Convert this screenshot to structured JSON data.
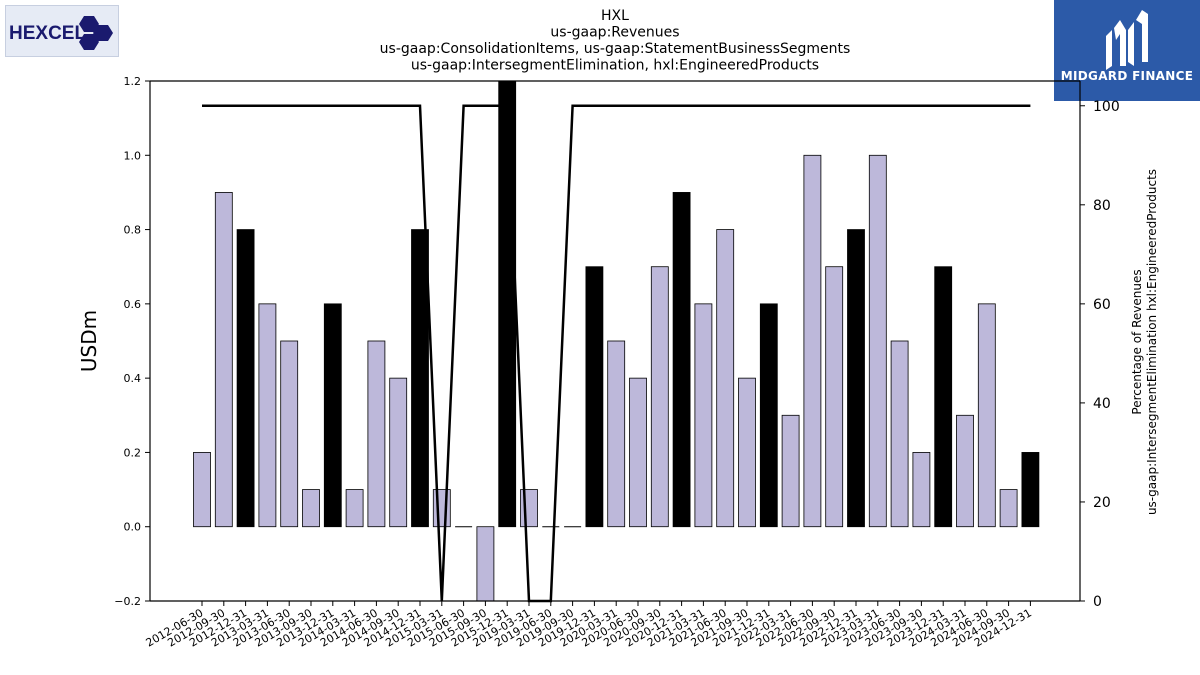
{
  "brand": {
    "left_logo_text": "HEXCEL",
    "right_logo_text": "MIDGARD FINANCE",
    "colors": {
      "light_bar": "#bdb8da",
      "dark_bar": "#000000",
      "line": "#000000",
      "logo_navy": "#1a1a6e",
      "logo_blue": "#2c5aa8"
    }
  },
  "chart_data": {
    "type": "bar",
    "title_lines": [
      "HXL",
      "us-gaap:Revenues",
      "us-gaap:ConsolidationItems, us-gaap:StatementBusinessSegments",
      "us-gaap:IntersegmentElimination, hxl:EngineeredProducts"
    ],
    "ylabel": "USDm",
    "y2label_lines": [
      "Percentage of Revenues",
      "us-gaap:IntersegmentElimination hxl:EngineeredProducts"
    ],
    "ylim": [
      -0.2,
      1.2
    ],
    "y2lim": [
      0,
      105
    ],
    "yticks": [
      -0.2,
      0.0,
      0.2,
      0.4,
      0.6,
      0.8,
      1.0,
      1.2
    ],
    "ytick_labels": [
      "−0.2",
      "0.0",
      "0.2",
      "0.4",
      "0.6",
      "0.8",
      "1.0",
      "1.2"
    ],
    "y2ticks": [
      0,
      20,
      40,
      60,
      80,
      100
    ],
    "y2tick_labels": [
      "0",
      "20",
      "40",
      "60",
      "80",
      "100"
    ],
    "categories": [
      "2012-06-30",
      "2012-09-30",
      "2012-12-31",
      "2013-03-31",
      "2013-06-30",
      "2013-09-30",
      "2013-12-31",
      "2014-03-31",
      "2014-06-30",
      "2014-09-30",
      "2014-12-31",
      "2015-03-31",
      "2015-06-30",
      "2015-09-30",
      "2015-12-31",
      "2019-03-31",
      "2019-06-30",
      "2019-09-30",
      "2019-12-31",
      "2020-03-31",
      "2020-06-30",
      "2020-09-30",
      "2020-12-31",
      "2021-03-31",
      "2021-06-30",
      "2021-09-30",
      "2021-12-31",
      "2022-03-31",
      "2022-06-30",
      "2022-09-30",
      "2022-12-31",
      "2023-03-31",
      "2023-06-30",
      "2023-09-30",
      "2023-12-31",
      "2024-03-31",
      "2024-06-30",
      "2024-09-30",
      "2024-12-31"
    ],
    "values": [
      0.2,
      0.9,
      0.8,
      0.6,
      0.5,
      0.1,
      0.6,
      0.1,
      0.5,
      0.4,
      0.8,
      0.1,
      0.0,
      -0.2,
      1.2,
      0.1,
      0.0,
      0.0,
      0.7,
      0.5,
      0.4,
      0.7,
      0.9,
      0.6,
      0.8,
      0.4,
      0.6,
      0.3,
      1.0,
      0.7,
      0.8,
      1.0,
      0.5,
      0.2,
      0.7,
      0.3,
      0.6,
      0.1,
      0.2
    ],
    "dark": [
      false,
      false,
      true,
      false,
      false,
      false,
      true,
      false,
      false,
      false,
      true,
      false,
      false,
      false,
      true,
      false,
      false,
      false,
      true,
      false,
      false,
      false,
      true,
      false,
      false,
      false,
      true,
      false,
      false,
      false,
      true,
      false,
      false,
      false,
      true,
      false,
      false,
      false,
      true
    ],
    "percentage_series": {
      "axis": "right",
      "values": [
        100,
        100,
        100,
        100,
        100,
        100,
        100,
        100,
        100,
        100,
        100,
        0,
        100,
        100,
        100,
        0,
        0,
        100,
        100,
        100,
        100,
        100,
        100,
        100,
        100,
        100,
        100,
        100,
        100,
        100,
        100,
        100,
        100,
        100,
        100,
        100,
        100,
        100,
        100
      ]
    },
    "grid": false,
    "legend": "none"
  }
}
